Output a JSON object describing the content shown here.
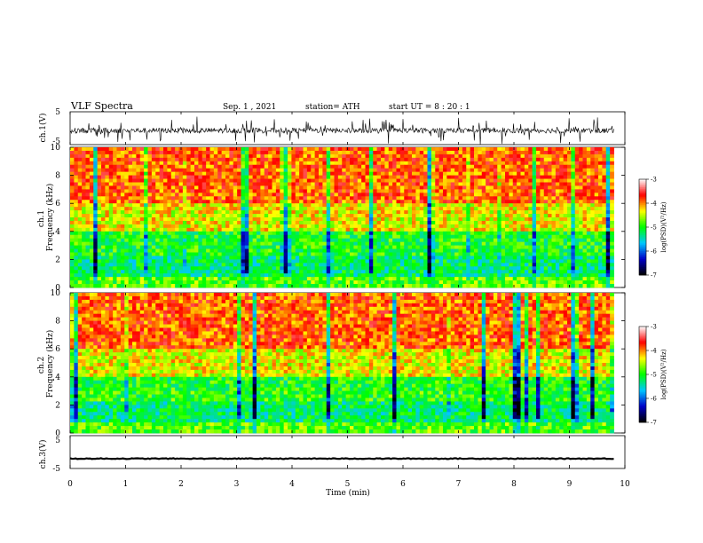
{
  "header": {
    "title": "VLF Spectra",
    "date": "Sep. 1 , 2021",
    "station": "station= ATH",
    "start": "start UT =  8 : 20 : 1"
  },
  "chart_data": [
    {
      "type": "line",
      "id": "ch1-waveform",
      "ylabel": "ch.1(V)",
      "xlim": [
        0,
        10
      ],
      "ylim": [
        -5,
        5
      ],
      "yticks": [
        "5",
        "-5"
      ],
      "baseline_v": -0.7,
      "color": "#000000"
    },
    {
      "type": "heatmap",
      "id": "ch1-spectrogram",
      "ylabel": "ch.1\nFrequency (kHz)",
      "xlim": [
        0,
        9.8
      ],
      "ylim": [
        0,
        10
      ],
      "yticks": [
        "10",
        "8",
        "6",
        "4",
        "2",
        "0"
      ]
    },
    {
      "type": "heatmap",
      "id": "ch2-spectrogram",
      "ylabel": "ch.2\nFrequency (kHz)",
      "xlim": [
        0,
        9.8
      ],
      "ylim": [
        0,
        10
      ],
      "yticks": [
        "10",
        "8",
        "6",
        "4",
        "2",
        "0"
      ]
    },
    {
      "type": "line",
      "id": "ch3-waveform",
      "ylabel": "ch.3(V)",
      "xlim": [
        0,
        10
      ],
      "ylim": [
        -5,
        5
      ],
      "yticks": [
        "5",
        "-5"
      ],
      "baseline_v": -2.0,
      "color": "#000000"
    }
  ],
  "xaxis": {
    "label": "Time (min)",
    "ticks": [
      "0",
      "1",
      "2",
      "3",
      "4",
      "5",
      "6",
      "7",
      "8",
      "9",
      "10"
    ]
  },
  "colorbar": {
    "label": "log(PSD)(V²/Hz)",
    "ticks": [
      "-3",
      "-4",
      "-5",
      "-6",
      "-7"
    ],
    "range": [
      -7,
      -3
    ],
    "colors": [
      "#000000",
      "#0000c8",
      "#00c8ff",
      "#00ff00",
      "#ffff00",
      "#ff0000",
      "#ffffff"
    ]
  }
}
